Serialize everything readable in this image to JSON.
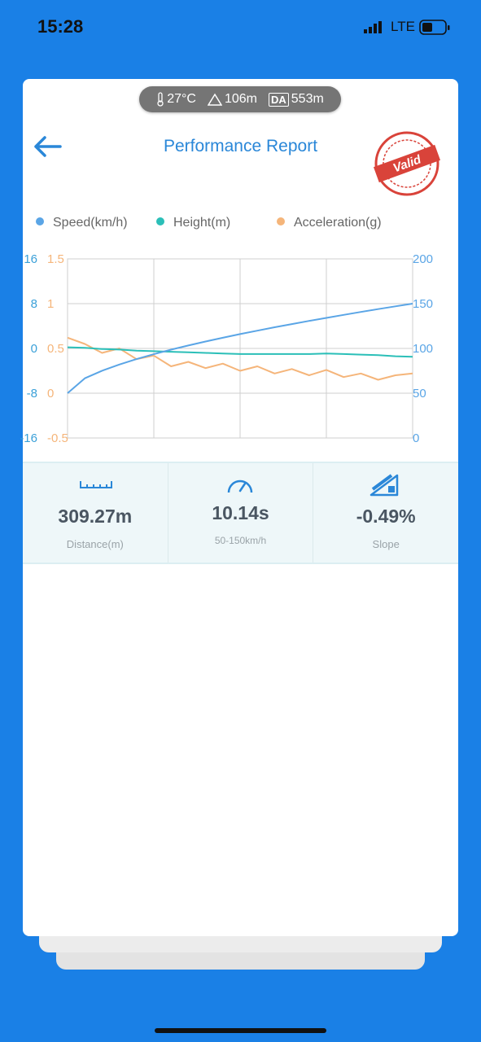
{
  "status_bar": {
    "time": "15:28",
    "network": "LTE"
  },
  "conditions": {
    "temperature": "27°C",
    "altitude": "106m",
    "da_badge": "DA",
    "density_altitude": "553m"
  },
  "header": {
    "title": "Performance Report",
    "stamp": "Valid"
  },
  "chart_data": {
    "type": "line",
    "series": [
      {
        "name": "Speed(km/h)",
        "color": "#5aa5e6",
        "axis": "y2",
        "values": [
          50,
          66.6,
          75.1,
          82.0,
          88.1,
          93.5,
          98.6,
          103.3,
          107.7,
          111.9,
          116.0,
          119.8,
          123.6,
          127.2,
          130.7,
          134.1,
          137.5,
          140.7,
          143.9,
          147.0,
          150
        ]
      },
      {
        "name": "Height(m)",
        "color": "#2bbfb8",
        "axis": "y3",
        "values": [
          0.2,
          0.1,
          -0.1,
          -0.2,
          -0.4,
          -0.5,
          -0.6,
          -0.7,
          -0.8,
          -0.9,
          -1.0,
          -1.0,
          -1.0,
          -1.0,
          -1.0,
          -0.9,
          -1.0,
          -1.1,
          -1.2,
          -1.4,
          -1.5
        ]
      },
      {
        "name": "Acceleration(g)",
        "color": "#f5b57a",
        "values": [
          0.62,
          0.55,
          0.45,
          0.5,
          0.38,
          0.42,
          0.3,
          0.35,
          0.28,
          0.33,
          0.25,
          0.3,
          0.22,
          0.27,
          0.2,
          0.26,
          0.18,
          0.22,
          0.15,
          0.2,
          0.22
        ]
      }
    ],
    "ylim": [
      -0.5,
      1.5
    ],
    "yticks": [
      1.5,
      1,
      0.5,
      0,
      -0.5
    ],
    "y2lim": [
      0,
      200
    ],
    "y2ticks": [
      200,
      150,
      100,
      50,
      0
    ],
    "y3lim": [
      -16,
      16
    ],
    "y3ticks": [
      16,
      8,
      0,
      -8,
      -16
    ],
    "grid": true,
    "legend": "top"
  },
  "stats": [
    {
      "value": "309.27m",
      "label": "Distance(m)"
    },
    {
      "value": "10.14s",
      "label": "50-150km/h"
    },
    {
      "value": "-0.49%",
      "label": "Slope"
    }
  ]
}
